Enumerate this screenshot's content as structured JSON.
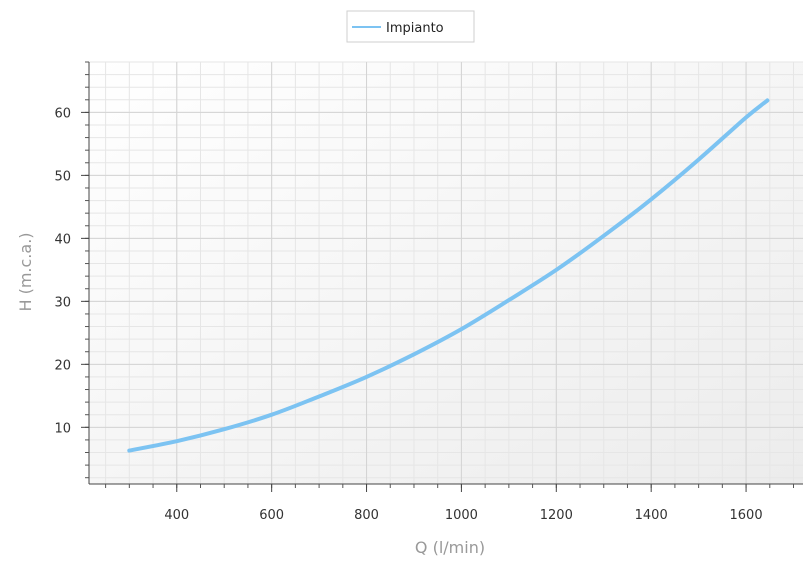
{
  "chart_data": {
    "type": "line",
    "title": "",
    "xlabel": "Q (l/min)",
    "ylabel": "H (m.c.a.)",
    "xlim": [
      215,
      1720
    ],
    "ylim": [
      1,
      68
    ],
    "x_ticks": [
      400,
      600,
      800,
      1000,
      1200,
      1400,
      1600
    ],
    "y_ticks": [
      10,
      20,
      30,
      40,
      50,
      60
    ],
    "grid": true,
    "legend": "top-center",
    "series": [
      {
        "name": "Impianto",
        "color": "#7cc3f2",
        "x": [
          300,
          400,
          500,
          600,
          700,
          800,
          900,
          1000,
          1100,
          1200,
          1300,
          1400,
          1500,
          1600,
          1645
        ],
        "y": [
          6.3,
          7.8,
          9.7,
          12.0,
          14.9,
          18.0,
          21.6,
          25.6,
          30.2,
          35.0,
          40.4,
          46.2,
          52.5,
          59.2,
          61.9
        ]
      }
    ]
  }
}
